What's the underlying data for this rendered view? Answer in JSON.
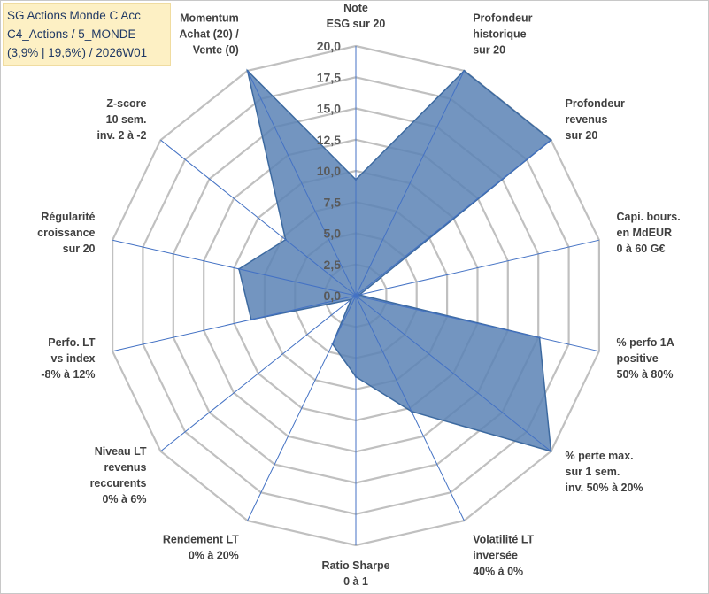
{
  "chart_data": {
    "type": "radar",
    "title_lines": [
      "SG Actions Monde C Acc",
      "C4_Actions / 5_MONDE",
      "(3,9% | 19,6%) / 2026W01"
    ],
    "rlim": [
      0,
      20
    ],
    "tick_values": [
      0,
      2.5,
      5,
      7.5,
      10,
      12.5,
      15,
      17.5,
      20
    ],
    "tick_labels": [
      "0,0",
      "2,5",
      "5,0",
      "7,5",
      "10,0",
      "12,5",
      "15,0",
      "17,5",
      "20,0"
    ],
    "axes": [
      {
        "label": [
          "Note",
          "ESG sur 20"
        ],
        "value": 9.3
      },
      {
        "label": [
          "Profondeur",
          "historique",
          "sur 20"
        ],
        "value": 20
      },
      {
        "label": [
          "Profondeur",
          "revenus",
          "sur 20"
        ],
        "value": 20
      },
      {
        "label": [
          "Capi. bours.",
          "en MdEUR",
          "0 à 60 G€"
        ],
        "value": 0.3
      },
      {
        "label": [
          "% perfo 1A",
          "positive",
          "50% à 80%"
        ],
        "value": 15.1
      },
      {
        "label": [
          "% perte max.",
          "sur 1 sem.",
          "inv. 50% à 20%"
        ],
        "value": 20
      },
      {
        "label": [
          "Volatilité LT",
          "inversée",
          "40% à 0%"
        ],
        "value": 10.3
      },
      {
        "label": [
          "Ratio Sharpe",
          "0 à 1"
        ],
        "value": 6.5
      },
      {
        "label": [
          "Rendement LT",
          "0% à 20%"
        ],
        "value": 4.3
      },
      {
        "label": [
          "Niveau LT",
          "revenus",
          "reccurents",
          "0% à 6%"
        ],
        "value": 0.5
      },
      {
        "label": [
          "Perfo. LT",
          "vs index",
          "-8% à 12%"
        ],
        "value": 8.6
      },
      {
        "label": [
          "Régularité",
          "croissance",
          "sur 20"
        ],
        "value": 9.6
      },
      {
        "label": [
          "Z-score",
          "10 sem.",
          "inv. 2 à -2"
        ],
        "value": 7.2
      },
      {
        "label": [
          "Momentum",
          "Achat (20) /",
          "Vente (0)"
        ],
        "value": 20
      }
    ],
    "series_name": "SG Actions Monde C Acc",
    "fill_color": "#5b82b5",
    "stroke_color": "#3d6aa0",
    "grid_color": "#c0c0c0",
    "spoke_color": "#4472c4"
  }
}
